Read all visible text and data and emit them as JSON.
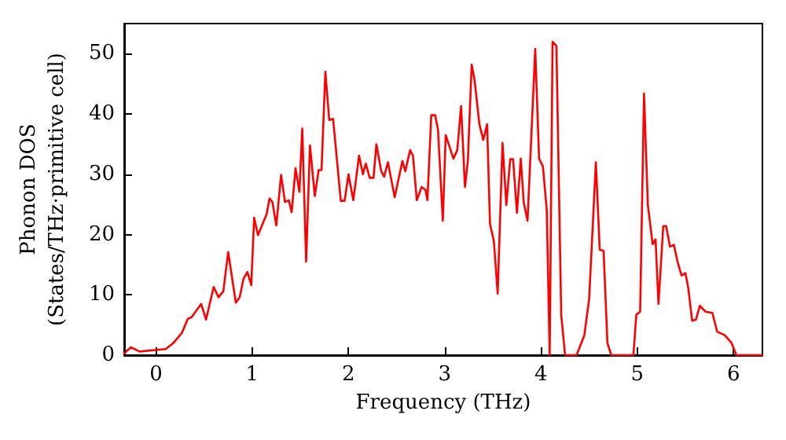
{
  "chart_data": {
    "type": "line",
    "xlabel": "Frequency (THz)",
    "ylabel": "Phonon DOS\n(States/THz·primitive cell)",
    "xlim": [
      -0.33,
      6.3
    ],
    "xticks": [
      0,
      1,
      2,
      3,
      4,
      5,
      6
    ],
    "ylim": [
      0,
      55
    ],
    "yticks": [
      0,
      10,
      20,
      30,
      40,
      50
    ],
    "grid": false,
    "marker": "none",
    "line_style": "solid",
    "x": [
      -0.33,
      -0.26,
      -0.17,
      0.1,
      0.18,
      0.27,
      0.33,
      0.37,
      0.47,
      0.52,
      0.6,
      0.65,
      0.7,
      0.75,
      0.83,
      0.87,
      0.91,
      0.95,
      0.99,
      1.02,
      1.06,
      1.15,
      1.18,
      1.21,
      1.25,
      1.3,
      1.34,
      1.38,
      1.41,
      1.45,
      1.49,
      1.52,
      1.56,
      1.6,
      1.65,
      1.69,
      1.72,
      1.76,
      1.8,
      1.84,
      1.92,
      1.96,
      2.0,
      2.05,
      2.11,
      2.15,
      2.18,
      2.22,
      2.26,
      2.29,
      2.34,
      2.37,
      2.41,
      2.48,
      2.56,
      2.59,
      2.64,
      2.67,
      2.71,
      2.76,
      2.8,
      2.82,
      2.86,
      2.9,
      2.93,
      2.98,
      3.01,
      3.09,
      3.13,
      3.17,
      3.21,
      3.24,
      3.28,
      3.31,
      3.36,
      3.4,
      3.44,
      3.47,
      3.51,
      3.55,
      3.6,
      3.64,
      3.68,
      3.71,
      3.75,
      3.79,
      3.82,
      3.86,
      3.94,
      3.98,
      4.02,
      4.06,
      4.09,
      4.12,
      4.16,
      4.21,
      4.25,
      4.37,
      4.45,
      4.5,
      4.57,
      4.61,
      4.65,
      4.69,
      4.73,
      4.96,
      4.99,
      5.03,
      5.07,
      5.11,
      5.16,
      5.19,
      5.22,
      5.27,
      5.3,
      5.34,
      5.38,
      5.42,
      5.46,
      5.5,
      5.53,
      5.57,
      5.61,
      5.65,
      5.71,
      5.78,
      5.83,
      5.91,
      5.98,
      6.03,
      6.3
    ],
    "series": [
      {
        "color": "#ff0000",
        "values": [
          0.3,
          1.3,
          0.6,
          1,
          2,
          3.7,
          6,
          6.3,
          8.5,
          5.9,
          11.3,
          9.6,
          10.6,
          17.1,
          8.7,
          9.6,
          12.7,
          13.8,
          11.6,
          22.8,
          19.9,
          23.4,
          26,
          25.4,
          21.5,
          29.9,
          25.4,
          25.7,
          23.7,
          31,
          27.1,
          37.6,
          15.5,
          34.8,
          26.4,
          30.7,
          30.7,
          47,
          39,
          39.2,
          25.6,
          25.6,
          30,
          25.7,
          33.1,
          30,
          31.8,
          29.4,
          29.4,
          35,
          30.5,
          29.6,
          32,
          26.2,
          32.2,
          30.5,
          34,
          33.1,
          25.7,
          27.9,
          27.4,
          25.7,
          39.8,
          39.8,
          37.4,
          22.3,
          36.5,
          32.6,
          34,
          41.3,
          27.9,
          32.2,
          48.2,
          45.6,
          38.3,
          35.7,
          38.3,
          21.8,
          18.9,
          10.2,
          35.2,
          24.9,
          32.5,
          32.5,
          23.6,
          32.6,
          25.4,
          22.3,
          50.8,
          32.6,
          31.3,
          24,
          0,
          52,
          51.3,
          6.7,
          0,
          0,
          3.3,
          9.3,
          32,
          17.5,
          17.3,
          2,
          0,
          0,
          6.7,
          7.2,
          43.4,
          24.9,
          18.4,
          19.2,
          8.5,
          21.4,
          21.4,
          18,
          18.3,
          15.4,
          13.2,
          13.6,
          11.1,
          5.7,
          5.9,
          8.2,
          7.2,
          7,
          3.9,
          3.3,
          2,
          0,
          0
        ]
      }
    ]
  }
}
